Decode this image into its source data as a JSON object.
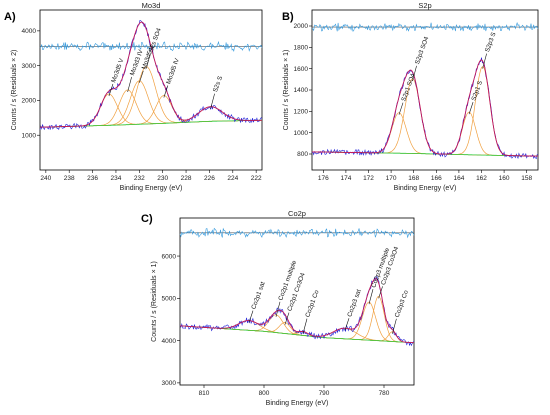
{
  "chart_data": [
    {
      "panel_label": "A)",
      "type": "line",
      "title": "Mo3d",
      "xlabel": "Binding Energy (eV)",
      "ylabel": "Counts / s  (Residuals × 2)",
      "xlim": [
        240.5,
        221.5
      ],
      "ylim": [
        0,
        4600
      ],
      "xticks": [
        240,
        238,
        236,
        234,
        232,
        230,
        228,
        226,
        224,
        222
      ],
      "yticks": [
        1000,
        2000,
        3000,
        4000
      ],
      "residual_baseline": 3550,
      "background": [
        [
          240.5,
          1230
        ],
        [
          234,
          1290
        ],
        [
          230,
          1340
        ],
        [
          226,
          1400
        ],
        [
          221.5,
          1430
        ]
      ],
      "peaks": [
        {
          "label": "Mo3d5 V",
          "center": 234.6,
          "height": 900,
          "fwhm": 1.7
        },
        {
          "label": "Mo3d3 IV",
          "center": 233.0,
          "height": 1000,
          "fwhm": 1.7
        },
        {
          "label": "Mo3d5 V",
          "center": 232.0,
          "height": 1250,
          "fwhm": 1.8
        },
        {
          "label": "S2s SO4",
          "center": 231.4,
          "height": 1650,
          "fwhm": 1.9
        },
        {
          "label": "Mo3d5 IV",
          "center": 229.9,
          "height": 800,
          "fwhm": 1.6
        },
        {
          "label": "S2s S",
          "center": 225.9,
          "height": 420,
          "fwhm": 2.4
        }
      ]
    },
    {
      "panel_label": "B)",
      "type": "line",
      "title": "S2p",
      "xlabel": "Binding Energy (eV)",
      "ylabel": "Counts / s  (Residuals × 1)",
      "xlim": [
        177,
        157
      ],
      "ylim": [
        650,
        2150
      ],
      "xticks": [
        176,
        174,
        172,
        170,
        168,
        166,
        164,
        162,
        160,
        158
      ],
      "yticks": [
        800,
        1000,
        1200,
        1400,
        1600,
        1800,
        2000
      ],
      "residual_baseline": 1990,
      "background": [
        [
          177,
          820
        ],
        [
          168,
          805
        ],
        [
          162,
          790
        ],
        [
          157,
          780
        ]
      ],
      "peaks": [
        {
          "label": "S2p1 SO4",
          "center": 169.3,
          "height": 380,
          "fwhm": 1.5
        },
        {
          "label": "S2p3 SO4",
          "center": 168.1,
          "height": 700,
          "fwhm": 1.6
        },
        {
          "label": "S2p1 S",
          "center": 163.1,
          "height": 400,
          "fwhm": 1.4
        },
        {
          "label": "S2p3 S",
          "center": 161.9,
          "height": 830,
          "fwhm": 1.5
        }
      ]
    },
    {
      "panel_label": "C)",
      "type": "line",
      "title": "Co2p",
      "xlabel": "Binding Energy (eV)",
      "ylabel": "Counts / s  (Residuals × 1)",
      "xlim": [
        814,
        775
      ],
      "ylim": [
        2950,
        6900
      ],
      "xticks": [
        810,
        800,
        790,
        780
      ],
      "yticks": [
        3000,
        4000,
        5000,
        6000
      ],
      "residual_baseline": 6550,
      "background": [
        [
          814,
          4350
        ],
        [
          800,
          4220
        ],
        [
          790,
          4070
        ],
        [
          775,
          3950
        ]
      ],
      "peaks": [
        {
          "label": "Co2p1 sat",
          "center": 802.5,
          "height": 230,
          "fwhm": 4.0
        },
        {
          "label": "Co2p1 multiple",
          "center": 798.0,
          "height": 420,
          "fwhm": 2.8
        },
        {
          "label": "Co2p1 Co3O4",
          "center": 796.5,
          "height": 260,
          "fwhm": 2.2
        },
        {
          "label": "Co2p1 Co",
          "center": 793.5,
          "height": 90,
          "fwhm": 2.0
        },
        {
          "label": "Co2p3 sat",
          "center": 786.5,
          "height": 250,
          "fwhm": 4.5
        },
        {
          "label": "Co2p3 multiple",
          "center": 782.5,
          "height": 900,
          "fwhm": 2.6
        },
        {
          "label": "Co2p3 Co3O4",
          "center": 780.9,
          "height": 1050,
          "fwhm": 2.2
        },
        {
          "label": "Co2p3 Co",
          "center": 778.6,
          "height": 230,
          "fwhm": 1.6
        }
      ]
    }
  ],
  "colors": {
    "raw": "#1f1fd8",
    "residual": "#3399dd",
    "envelope": "#c2185b",
    "component": "#f0a040",
    "background": "#2ecc40",
    "axis": "#000000"
  }
}
